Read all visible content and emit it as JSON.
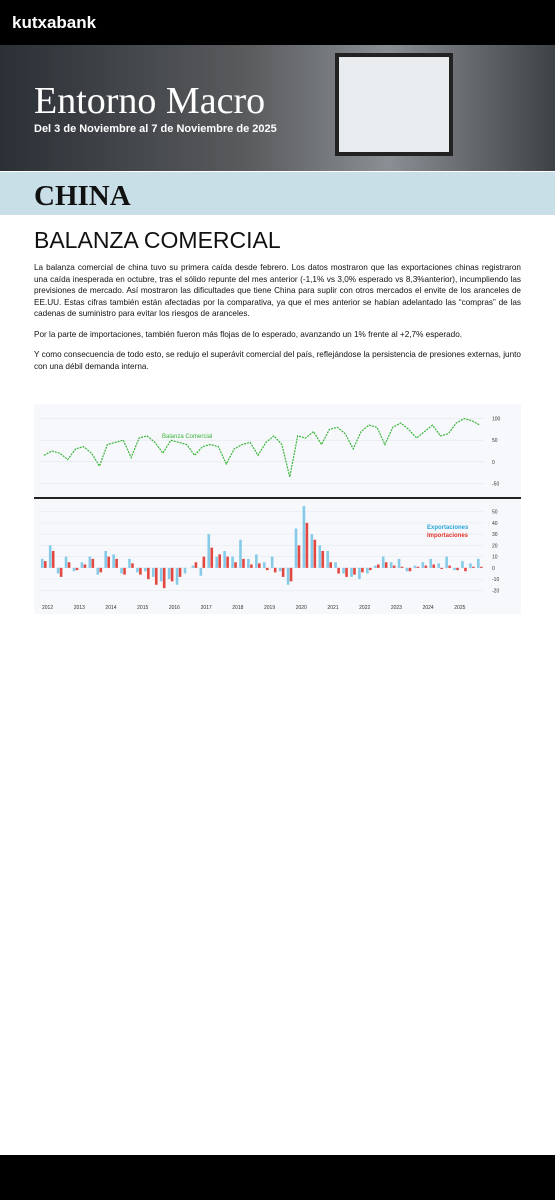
{
  "header": {
    "logo": "kutxabank",
    "title": "Entorno Macro",
    "subtitle": "Del 3 de Noviembre al 7 de Noviembre de 2025"
  },
  "section": "CHINA",
  "heading": "BALANZA COMERCIAL",
  "paragraphs": [
    "La balanza comercial de china tuvo su primera caída desde febrero. Los datos mostraron que las exportaciones chinas registraron una caída inesperada en octubre, tras el sólido repunte del mes anterior (-1,1% vs 3,0% esperado vs 8,3%anterior), incumpliendo las previsiones de mercado. Así mostraron las dificultades que tiene China para suplir con otros mercados el envite de los aranceles de EE.UU. Estas cifras también están afectadas por la comparativa, ya que el mes anterior se habían adelantado las “compras” de las cadenas de suministro para evitar los riesgos de aranceles.",
    "Por la parte de importaciones, también fueron más flojas de lo esperado, avanzando un 1% frente al +2,7% esperado.",
    "Y como consecuencia de todo esto, se redujo el superávit comercial del país, reflejándose la persistencia de presiones externas, junto con una débil demanda interna."
  ],
  "chart": {
    "years": [
      "2012",
      "2013",
      "2014",
      "2015",
      "2016",
      "2017",
      "2018",
      "2019",
      "2020",
      "2021",
      "2022",
      "2023",
      "2024",
      "2025"
    ],
    "balance": {
      "name": "Balanza Comercial",
      "color": "#3cb43c",
      "ylim": [
        -70,
        120
      ],
      "yticks": [
        -50,
        0,
        50,
        100
      ],
      "values": [
        15,
        25,
        20,
        5,
        30,
        35,
        20,
        -10,
        40,
        45,
        50,
        10,
        55,
        60,
        45,
        20,
        50,
        45,
        40,
        15,
        35,
        40,
        35,
        -5,
        30,
        40,
        45,
        15,
        45,
        60,
        40,
        -35,
        60,
        55,
        70,
        40,
        75,
        80,
        65,
        30,
        70,
        85,
        80,
        40,
        80,
        90,
        75,
        55,
        70,
        85,
        60,
        65,
        90,
        100,
        95,
        85
      ]
    },
    "ylim": [
      -25,
      55
    ],
    "yticks": [
      -20,
      -10,
      0,
      10,
      20,
      30,
      40,
      50
    ],
    "exports": {
      "name": "Exportaciones",
      "color": "#2aa7d8",
      "values": [
        8,
        20,
        -5,
        10,
        -3,
        5,
        10,
        -6,
        15,
        12,
        -5,
        8,
        -4,
        -3,
        -8,
        -12,
        -10,
        -15,
        -5,
        2,
        -7,
        30,
        10,
        15,
        10,
        25,
        8,
        12,
        5,
        10,
        -3,
        -15,
        35,
        55,
        30,
        20,
        15,
        5,
        -5,
        -8,
        -10,
        -5,
        2,
        10,
        5,
        8,
        -3,
        2,
        5,
        8,
        4,
        10,
        -2,
        6,
        4,
        8
      ]
    },
    "imports": {
      "name": "Importaciones",
      "color": "#e0342c",
      "values": [
        6,
        15,
        -8,
        5,
        -2,
        3,
        8,
        -4,
        10,
        8,
        -6,
        4,
        -6,
        -10,
        -15,
        -18,
        -12,
        -8,
        0,
        5,
        10,
        18,
        12,
        10,
        5,
        8,
        3,
        4,
        -2,
        -4,
        -8,
        -12,
        20,
        40,
        25,
        15,
        5,
        -5,
        -8,
        -6,
        -4,
        -2,
        3,
        5,
        2,
        1,
        -3,
        1,
        2,
        3,
        -1,
        2,
        -2,
        -3,
        1,
        1
      ]
    }
  }
}
